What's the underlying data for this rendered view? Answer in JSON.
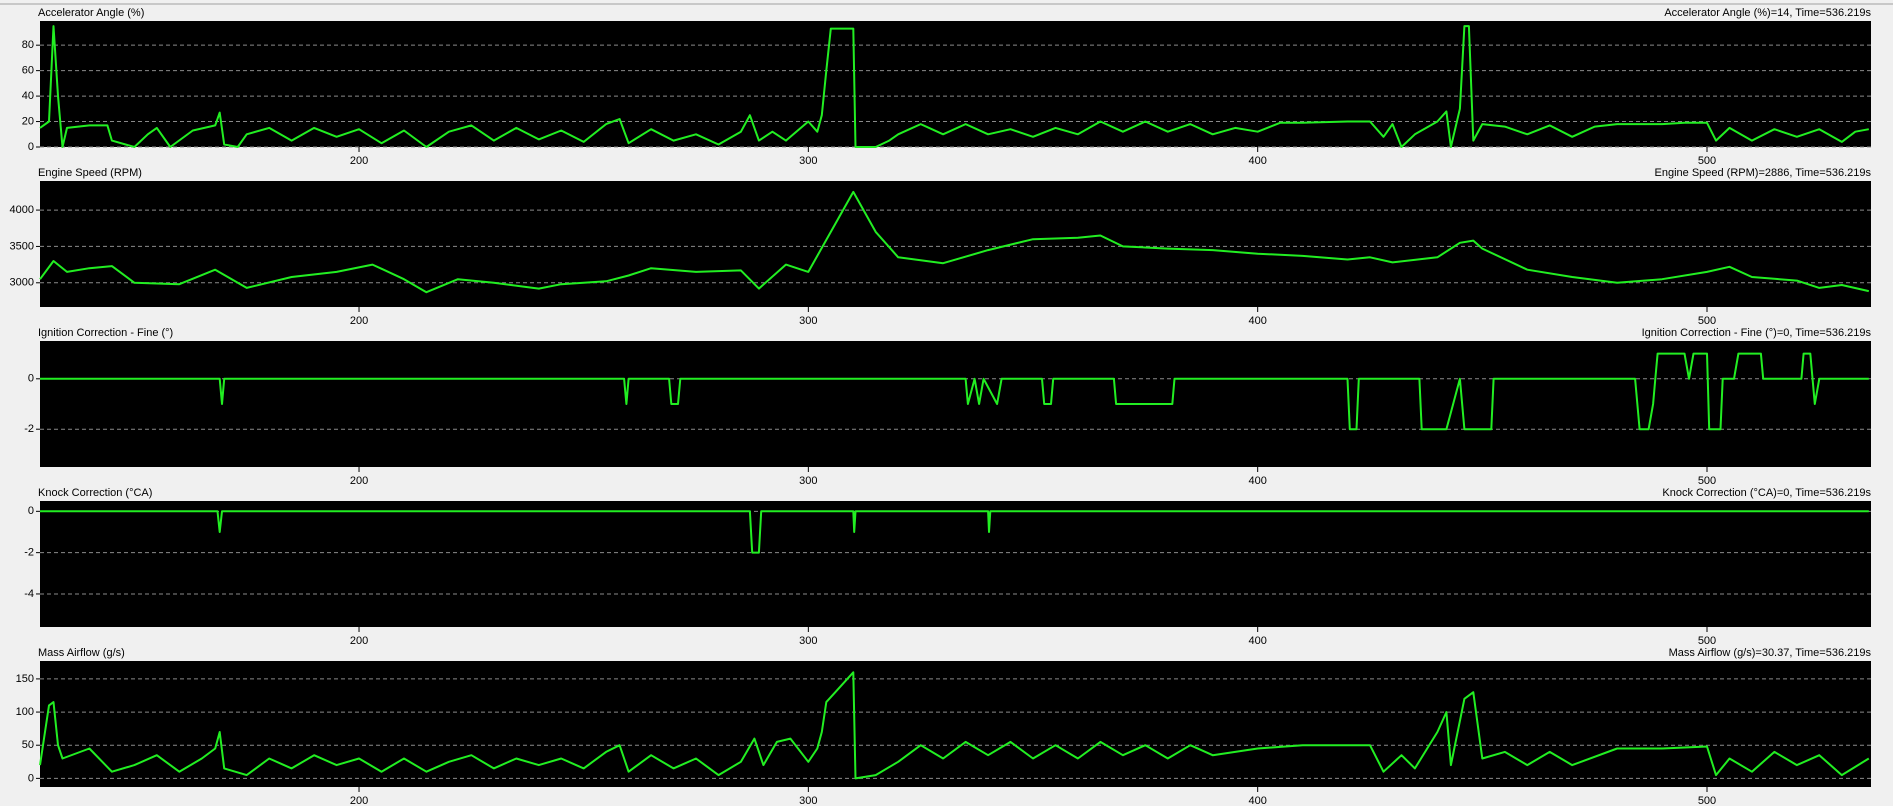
{
  "chart_data": [
    {
      "type": "line",
      "title": "Accelerator Angle (%)",
      "readout": "Accelerator Angle (%)=14, Time=536.219s",
      "color": "#22ee22",
      "grid": true,
      "xlim": [
        129,
        536.5
      ],
      "xticks": [
        200,
        300,
        400,
        500
      ],
      "ylim": [
        0,
        99
      ],
      "yticks": [
        0,
        20,
        40,
        60,
        80
      ],
      "x": [
        129,
        131,
        132,
        133,
        134,
        135,
        140,
        144,
        145,
        150,
        153,
        155,
        158,
        163,
        168,
        169,
        170,
        173,
        175,
        180,
        185,
        190,
        195,
        200,
        205,
        210,
        215,
        220,
        225,
        230,
        235,
        240,
        245,
        250,
        255,
        258,
        260,
        265,
        270,
        275,
        280,
        285,
        287,
        289,
        292,
        295,
        300,
        302,
        303,
        304,
        305,
        310,
        310.5,
        315,
        318,
        320,
        325,
        330,
        335,
        340,
        345,
        350,
        355,
        360,
        365,
        370,
        375,
        380,
        385,
        390,
        395,
        400,
        405,
        410,
        420,
        425,
        428,
        430,
        432,
        435,
        440,
        442,
        443,
        445,
        446,
        447,
        448,
        450,
        455,
        460,
        465,
        470,
        475,
        480,
        485,
        490,
        495,
        500,
        502,
        505,
        510,
        515,
        520,
        525,
        530,
        533,
        536
      ],
      "values": [
        15,
        20,
        95,
        40,
        0,
        15,
        17,
        17,
        5,
        0,
        10,
        15,
        0,
        13,
        17,
        27,
        2,
        0,
        10,
        15,
        5,
        15,
        8,
        14,
        3,
        13,
        0,
        12,
        17,
        5,
        15,
        6,
        13,
        4,
        18,
        22,
        3,
        14,
        5,
        10,
        2,
        12,
        25,
        5,
        12,
        5,
        20,
        12,
        25,
        60,
        93,
        93,
        0,
        0,
        5,
        10,
        18,
        10,
        18,
        10,
        14,
        8,
        15,
        10,
        20,
        12,
        20,
        12,
        18,
        10,
        15,
        12,
        19,
        19,
        20,
        20,
        8,
        18,
        0,
        10,
        20,
        28,
        0,
        30,
        95,
        95,
        5,
        18,
        16,
        10,
        17,
        8,
        16,
        18,
        18,
        18,
        19,
        19,
        5,
        15,
        5,
        14,
        8,
        14,
        4,
        12,
        14
      ]
    },
    {
      "type": "line",
      "title": "Engine Speed (RPM)",
      "readout": "Engine Speed (RPM)=2886, Time=536.219s",
      "color": "#22ee22",
      "grid": true,
      "xlim": [
        129,
        536.5
      ],
      "xticks": [
        200,
        300,
        400,
        500
      ],
      "ylim": [
        2667,
        4400
      ],
      "yticks": [
        3000,
        3500,
        4000
      ],
      "x": [
        129,
        132,
        135,
        140,
        145,
        150,
        160,
        168,
        175,
        185,
        195,
        203,
        210,
        215,
        222,
        230,
        240,
        245,
        255,
        260,
        265,
        275,
        285,
        289,
        295,
        300,
        305,
        310,
        315,
        320,
        330,
        340,
        350,
        360,
        365,
        370,
        380,
        390,
        400,
        410,
        420,
        425,
        430,
        440,
        445,
        448,
        450,
        460,
        470,
        480,
        490,
        500,
        505,
        510,
        520,
        525,
        530,
        536
      ],
      "values": [
        3050,
        3300,
        3150,
        3200,
        3230,
        3000,
        2980,
        3180,
        2930,
        3080,
        3150,
        3250,
        3050,
        2870,
        3050,
        3000,
        2920,
        2980,
        3020,
        3100,
        3200,
        3150,
        3170,
        2920,
        3250,
        3150,
        3700,
        4250,
        3700,
        3350,
        3270,
        3450,
        3600,
        3620,
        3650,
        3500,
        3470,
        3450,
        3400,
        3370,
        3320,
        3350,
        3280,
        3350,
        3550,
        3580,
        3470,
        3180,
        3080,
        3000,
        3050,
        3150,
        3220,
        3080,
        3030,
        2930,
        2970,
        2886
      ]
    },
    {
      "type": "line",
      "title": "Ignition Correction - Fine (°)",
      "readout": "Ignition Correction - Fine (°)=0, Time=536.219s",
      "color": "#22ee22",
      "grid": true,
      "xlim": [
        129,
        536.5
      ],
      "xticks": [
        200,
        300,
        400,
        500
      ],
      "ylim": [
        -3.5,
        1.5
      ],
      "yticks": [
        -2,
        0
      ],
      "x": [
        129,
        169,
        169.5,
        170,
        259,
        259.5,
        260,
        269,
        269.5,
        271,
        271.5,
        335,
        335.5,
        337,
        338,
        339,
        342,
        343,
        352,
        352.5,
        354,
        354.5,
        368,
        368.5,
        381,
        381.5,
        420,
        420.5,
        422,
        422.5,
        436,
        436.5,
        442,
        445,
        446,
        452,
        452.5,
        484,
        485,
        487,
        488,
        488.5,
        489,
        495,
        496,
        497,
        500,
        500.5,
        503,
        503.5,
        506,
        507,
        511,
        512,
        512.5,
        521,
        521.5,
        523,
        524,
        525,
        536
      ],
      "values": [
        0,
        0,
        -1,
        0,
        0,
        -1,
        0,
        0,
        -1,
        -1,
        0,
        0,
        -1,
        0,
        -1,
        0,
        -1,
        0,
        0,
        -1,
        -1,
        0,
        0,
        -1,
        -1,
        0,
        0,
        -2,
        -2,
        0,
        0,
        -2,
        -2,
        0,
        -2,
        -2,
        0,
        0,
        -2,
        -2,
        -1,
        0,
        1,
        1,
        0,
        1,
        1,
        -2,
        -2,
        0,
        0,
        1,
        1,
        1,
        0,
        0,
        1,
        1,
        -1,
        0,
        0
      ]
    },
    {
      "type": "line",
      "title": "Knock Correction (°CA)",
      "readout": "Knock Correction (°CA)=0, Time=536.219s",
      "color": "#22ee22",
      "grid": true,
      "xlim": [
        129,
        536.5
      ],
      "xticks": [
        200,
        300,
        400,
        500
      ],
      "ylim": [
        -5.6,
        0.5
      ],
      "yticks": [
        -4,
        -2,
        0
      ],
      "x": [
        129,
        168.5,
        169,
        169.5,
        287,
        287.5,
        289,
        289.5,
        310,
        310.2,
        310.5,
        340,
        340.2,
        340.5,
        536
      ],
      "values": [
        0,
        0,
        -1,
        0,
        0,
        -2,
        -2,
        0,
        0,
        -1,
        0,
        0,
        -1,
        0,
        0
      ]
    },
    {
      "type": "line",
      "title": "Mass Airflow (g/s)",
      "readout": "Mass Airflow (g/s)=30.37, Time=536.219s",
      "color": "#22ee22",
      "grid": true,
      "xlim": [
        129,
        536.5
      ],
      "xticks": [
        200,
        300,
        400,
        500
      ],
      "ylim": [
        -13,
        177
      ],
      "yticks": [
        0,
        50,
        100,
        150
      ],
      "x": [
        129,
        131,
        132,
        133,
        134,
        140,
        145,
        150,
        155,
        160,
        165,
        168,
        169,
        170,
        175,
        180,
        185,
        190,
        195,
        200,
        205,
        210,
        215,
        220,
        225,
        230,
        235,
        240,
        245,
        250,
        255,
        258,
        260,
        265,
        270,
        275,
        280,
        285,
        288,
        290,
        293,
        296,
        300,
        302,
        303,
        304,
        306,
        310,
        310.5,
        315,
        320,
        325,
        330,
        335,
        340,
        345,
        350,
        355,
        360,
        365,
        370,
        375,
        380,
        385,
        390,
        400,
        410,
        420,
        425,
        428,
        432,
        435,
        440,
        442,
        443,
        446,
        448,
        450,
        455,
        460,
        465,
        470,
        480,
        490,
        500,
        502,
        505,
        510,
        515,
        520,
        525,
        530,
        536
      ],
      "values": [
        20,
        110,
        115,
        50,
        30,
        45,
        10,
        20,
        35,
        10,
        30,
        45,
        70,
        15,
        5,
        30,
        15,
        35,
        20,
        30,
        10,
        30,
        10,
        25,
        35,
        15,
        30,
        20,
        30,
        15,
        40,
        50,
        10,
        35,
        15,
        30,
        5,
        25,
        60,
        20,
        55,
        60,
        25,
        45,
        70,
        115,
        130,
        160,
        0,
        5,
        25,
        50,
        30,
        55,
        35,
        55,
        30,
        50,
        30,
        55,
        35,
        50,
        30,
        50,
        35,
        45,
        50,
        50,
        50,
        10,
        35,
        15,
        70,
        100,
        20,
        120,
        130,
        30,
        40,
        20,
        40,
        20,
        45,
        45,
        48,
        5,
        30,
        10,
        40,
        20,
        35,
        5,
        30
      ]
    }
  ]
}
